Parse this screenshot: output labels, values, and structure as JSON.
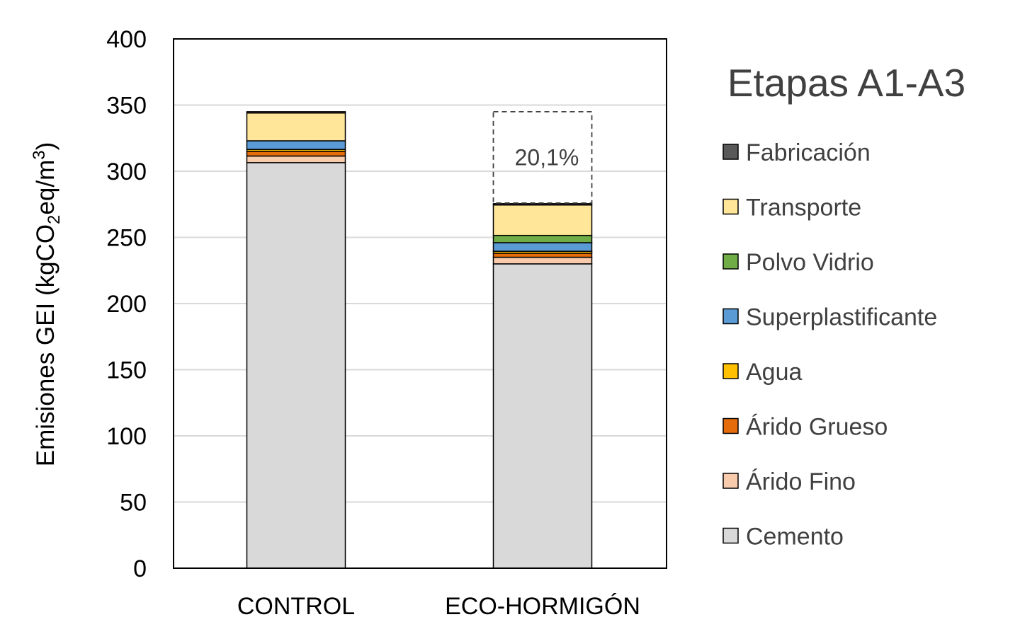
{
  "chart_data": {
    "type": "bar",
    "stacked": true,
    "title": "Etapas A1-A3",
    "xlabel": "",
    "ylabel": {
      "prefix": "Emisiones GEI (kgCO",
      "sub": "2",
      "mid": "eq/m",
      "sup": "3",
      "suffix": ")"
    },
    "categories": [
      "CONTROL",
      "ECO-HORMIGÓN"
    ],
    "ylim": [
      0,
      400
    ],
    "yticks": [
      0,
      50,
      100,
      150,
      200,
      250,
      300,
      350,
      400
    ],
    "grid": true,
    "legend_position": "right",
    "series": [
      {
        "name": "Cemento",
        "color": "#d9d9d9",
        "values": [
          306.5,
          230
        ]
      },
      {
        "name": "Árido Fino",
        "color": "#f8cbad",
        "values": [
          5,
          5
        ]
      },
      {
        "name": "Árido Grueso",
        "color": "#e46c0a",
        "values": [
          3.5,
          3
        ]
      },
      {
        "name": "Agua",
        "color": "#ffc000",
        "values": [
          1.5,
          1.5
        ]
      },
      {
        "name": "Superplastificante",
        "color": "#5b9bd5",
        "values": [
          6.5,
          6.5
        ]
      },
      {
        "name": "Polvo Vidrio",
        "color": "#70ad47",
        "values": [
          0,
          5.5
        ]
      },
      {
        "name": "Transporte",
        "color": "#ffe699",
        "values": [
          21,
          23
        ]
      },
      {
        "name": "Fabricación",
        "color": "#595959",
        "values": [
          1,
          1
        ]
      }
    ],
    "annotation": {
      "label": "20,1%",
      "category": "ECO-HORMIGÓN",
      "from": 276,
      "to": 345
    }
  }
}
